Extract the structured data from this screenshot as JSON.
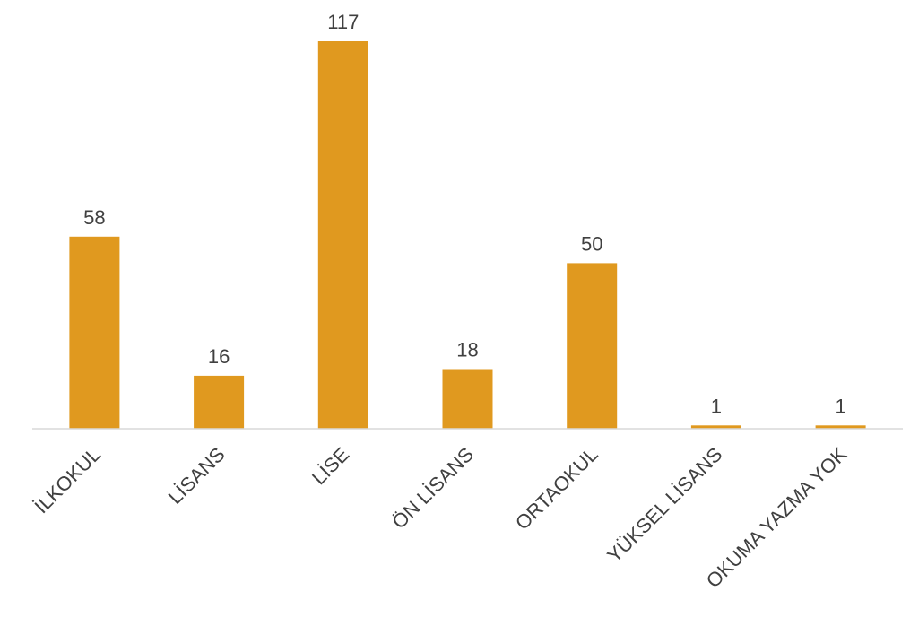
{
  "chart_data": {
    "type": "bar",
    "categories": [
      "İLKOKUL",
      "LİSANS",
      "LİSE",
      "ÖN LİSANS",
      "ORTAOKUL",
      "YÜKSEL LİSANS",
      "OKUMA YAZMA YOK"
    ],
    "values": [
      58,
      16,
      117,
      18,
      50,
      1,
      1
    ],
    "title": "",
    "xlabel": "",
    "ylabel": "",
    "ylim": [
      0,
      117
    ],
    "grid": false,
    "data_labels": true,
    "bar_color": "#E0991F",
    "axis_color": "#d9d9d9",
    "label_color": "#404040"
  }
}
